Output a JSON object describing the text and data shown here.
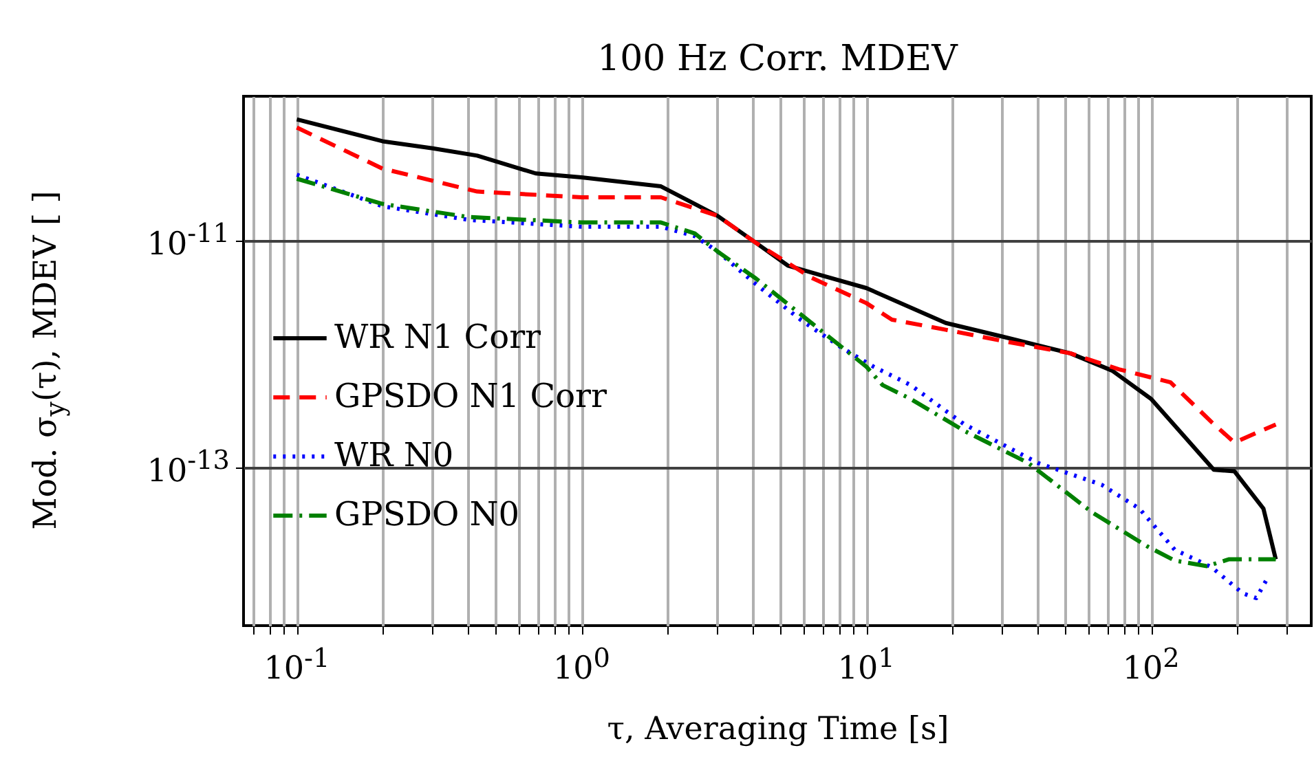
{
  "chart_data": {
    "type": "line",
    "title": "100 Hz Corr. MDEV",
    "xlabel": "τ, Averaging Time [s]",
    "ylabel": "Mod. σ$_{y}$(τ), MDEV [ ]",
    "log": "xy",
    "grid": true,
    "legend": "left",
    "xlim": [
      0.065,
      365
    ],
    "ylim": [
      4e-15,
      1.87e-10
    ],
    "xticks": [
      {
        "value": 0.07,
        "label": null
      },
      {
        "value": 0.08,
        "label": null
      },
      {
        "value": 0.09,
        "label": null
      },
      {
        "value": 0.1,
        "label": "10$^{-1}$"
      },
      {
        "value": 0.2,
        "label": null
      },
      {
        "value": 0.3,
        "label": null
      },
      {
        "value": 0.4,
        "label": null
      },
      {
        "value": 0.5,
        "label": null
      },
      {
        "value": 0.6,
        "label": null
      },
      {
        "value": 0.7,
        "label": null
      },
      {
        "value": 0.8,
        "label": null
      },
      {
        "value": 0.9,
        "label": null
      },
      {
        "value": 1,
        "label": "10$^{0}$"
      },
      {
        "value": 2,
        "label": null
      },
      {
        "value": 3,
        "label": null
      },
      {
        "value": 4,
        "label": null
      },
      {
        "value": 5,
        "label": null
      },
      {
        "value": 6,
        "label": null
      },
      {
        "value": 7,
        "label": null
      },
      {
        "value": 8,
        "label": null
      },
      {
        "value": 9,
        "label": null
      },
      {
        "value": 10,
        "label": "10$^{1}$"
      },
      {
        "value": 20,
        "label": null
      },
      {
        "value": 30,
        "label": null
      },
      {
        "value": 40,
        "label": null
      },
      {
        "value": 50,
        "label": null
      },
      {
        "value": 60,
        "label": null
      },
      {
        "value": 70,
        "label": null
      },
      {
        "value": 80,
        "label": null
      },
      {
        "value": 90,
        "label": null
      },
      {
        "value": 100,
        "label": "10$^{2}$"
      },
      {
        "value": 200,
        "label": null
      },
      {
        "value": 300,
        "label": null
      }
    ],
    "yticks": [
      {
        "value": 1e-11,
        "label": "10$^{-11}$"
      },
      {
        "value": 1e-13,
        "label": "10$^{-13}$"
      }
    ],
    "series": [
      {
        "name": "WR N1 Corr",
        "color": "#000000",
        "line_style": "solid",
        "x": [
          0.1,
          0.2,
          0.3,
          0.43,
          0.69,
          1,
          1.9,
          3.0,
          4.1,
          5.3,
          6.8,
          10,
          19,
          30,
          52,
          73,
          100,
          130,
          166,
          196,
          248,
          274
        ],
        "values": [
          1.17e-10,
          7.5e-11,
          6.5e-11,
          5.6e-11,
          3.9e-11,
          3.6e-11,
          3e-11,
          1.65e-11,
          9.5e-12,
          6e-12,
          5e-12,
          3.8e-12,
          1.87e-12,
          1.42e-12,
          1.01e-12,
          7.1e-13,
          4e-13,
          1.9e-13,
          9.5e-14,
          9.2e-14,
          4.3e-14,
          1.54e-14
        ]
      },
      {
        "name": "GPSDO N1 Corr",
        "color": "#ff0000",
        "line_style": "dashed",
        "x": [
          0.1,
          0.2,
          0.43,
          1,
          1.9,
          3.0,
          4.1,
          6.4,
          10,
          12.3,
          19,
          30,
          52,
          77,
          117,
          163,
          196,
          274
        ],
        "values": [
          9.9e-11,
          4.3e-11,
          2.7e-11,
          2.4e-11,
          2.4e-11,
          1.65e-11,
          9.5e-12,
          4.7e-12,
          2.8e-12,
          2e-12,
          1.63e-12,
          1.3e-12,
          1.01e-12,
          7.3e-13,
          5.6e-13,
          2.5e-13,
          1.65e-13,
          2.38e-13
        ]
      },
      {
        "name": "WR N0",
        "color": "#0000ff",
        "line_style": "dotted",
        "x": [
          0.1,
          0.2,
          0.4,
          1,
          1.9,
          2.5,
          3.0,
          4.1,
          5.9,
          8.2,
          10.6,
          14.3,
          22,
          40,
          67,
          91,
          121,
          163,
          210,
          234,
          254
        ],
        "values": [
          3.8e-11,
          2e-11,
          1.52e-11,
          1.32e-11,
          1.32e-11,
          1.09e-11,
          8e-12,
          4.1e-12,
          1.98e-12,
          1.13e-12,
          7.7e-13,
          5.3e-13,
          2.4e-13,
          1.09e-13,
          7e-14,
          4.3e-14,
          1.87e-14,
          1.31e-14,
          7.7e-15,
          7e-15,
          1.01e-14
        ]
      },
      {
        "name": "GPSDO N0",
        "color": "#008000",
        "line_style": "dashdot",
        "x": [
          0.1,
          0.2,
          0.4,
          1,
          1.9,
          2.5,
          3.0,
          4.1,
          6.6,
          10,
          11.4,
          14.3,
          22,
          37,
          62,
          97,
          121,
          157,
          188,
          274
        ],
        "values": [
          3.5e-11,
          2.1e-11,
          1.61e-11,
          1.44e-11,
          1.44e-11,
          1.15e-11,
          8e-12,
          4.6e-12,
          1.77e-12,
          7.7e-13,
          5.3e-13,
          4e-13,
          2.1e-13,
          1.09e-13,
          4e-14,
          2e-14,
          1.5e-14,
          1.34e-14,
          1.54e-14,
          1.54e-14
        ]
      }
    ]
  }
}
